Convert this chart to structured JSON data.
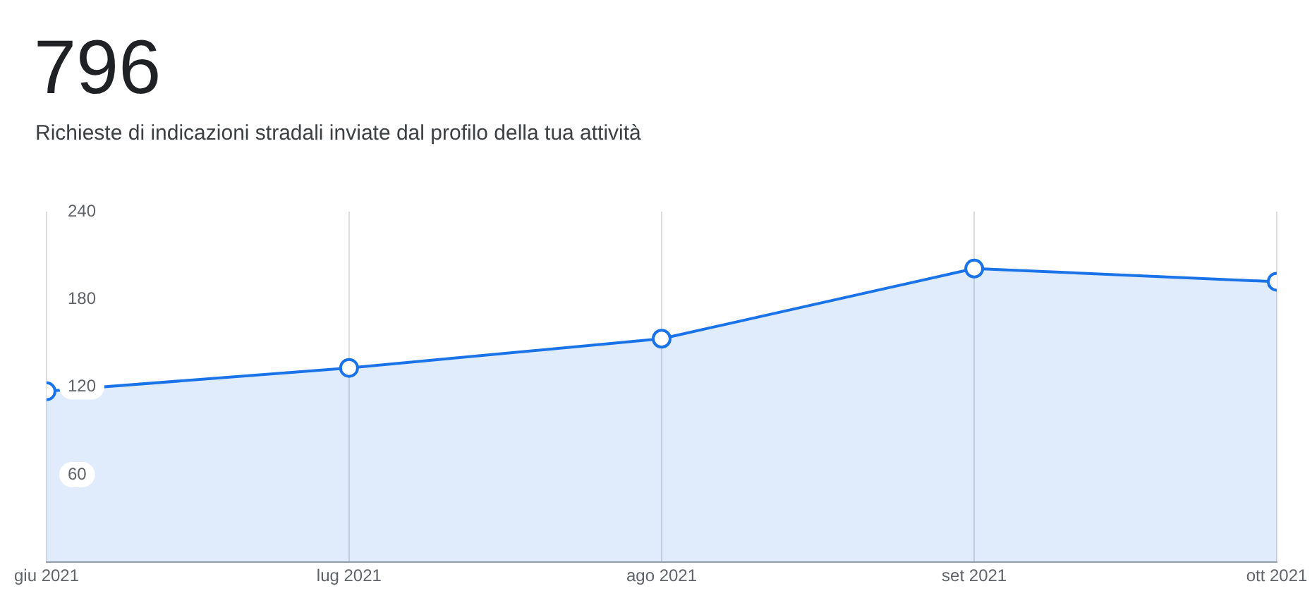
{
  "chart_data": {
    "type": "area",
    "title": "796",
    "subtitle": "Richieste di indicazioni stradali inviate dal profilo della tua attività",
    "x": [
      "2021-06",
      "2021-07",
      "2021-08",
      "2021-09",
      "2021-10"
    ],
    "series": [
      {
        "color": "#1a73e8",
        "values": [
          117,
          133,
          153,
          201,
          192
        ]
      }
    ],
    "xlim": [
      "2021-06",
      "2021-10"
    ],
    "xticks": [
      {
        "value": "2021-06",
        "label": "giu 2021"
      },
      {
        "value": "2021-07",
        "label": "lug 2021"
      },
      {
        "value": "2021-08",
        "label": "ago 2021"
      },
      {
        "value": "2021-09",
        "label": "set 2021"
      },
      {
        "value": "2021-10",
        "label": "ott 2021"
      }
    ],
    "ylim": [
      0,
      240
    ],
    "yticks": [
      60,
      120,
      180,
      240
    ],
    "grid": "x",
    "legend": false,
    "marker": "circle",
    "line_style": "solid"
  }
}
